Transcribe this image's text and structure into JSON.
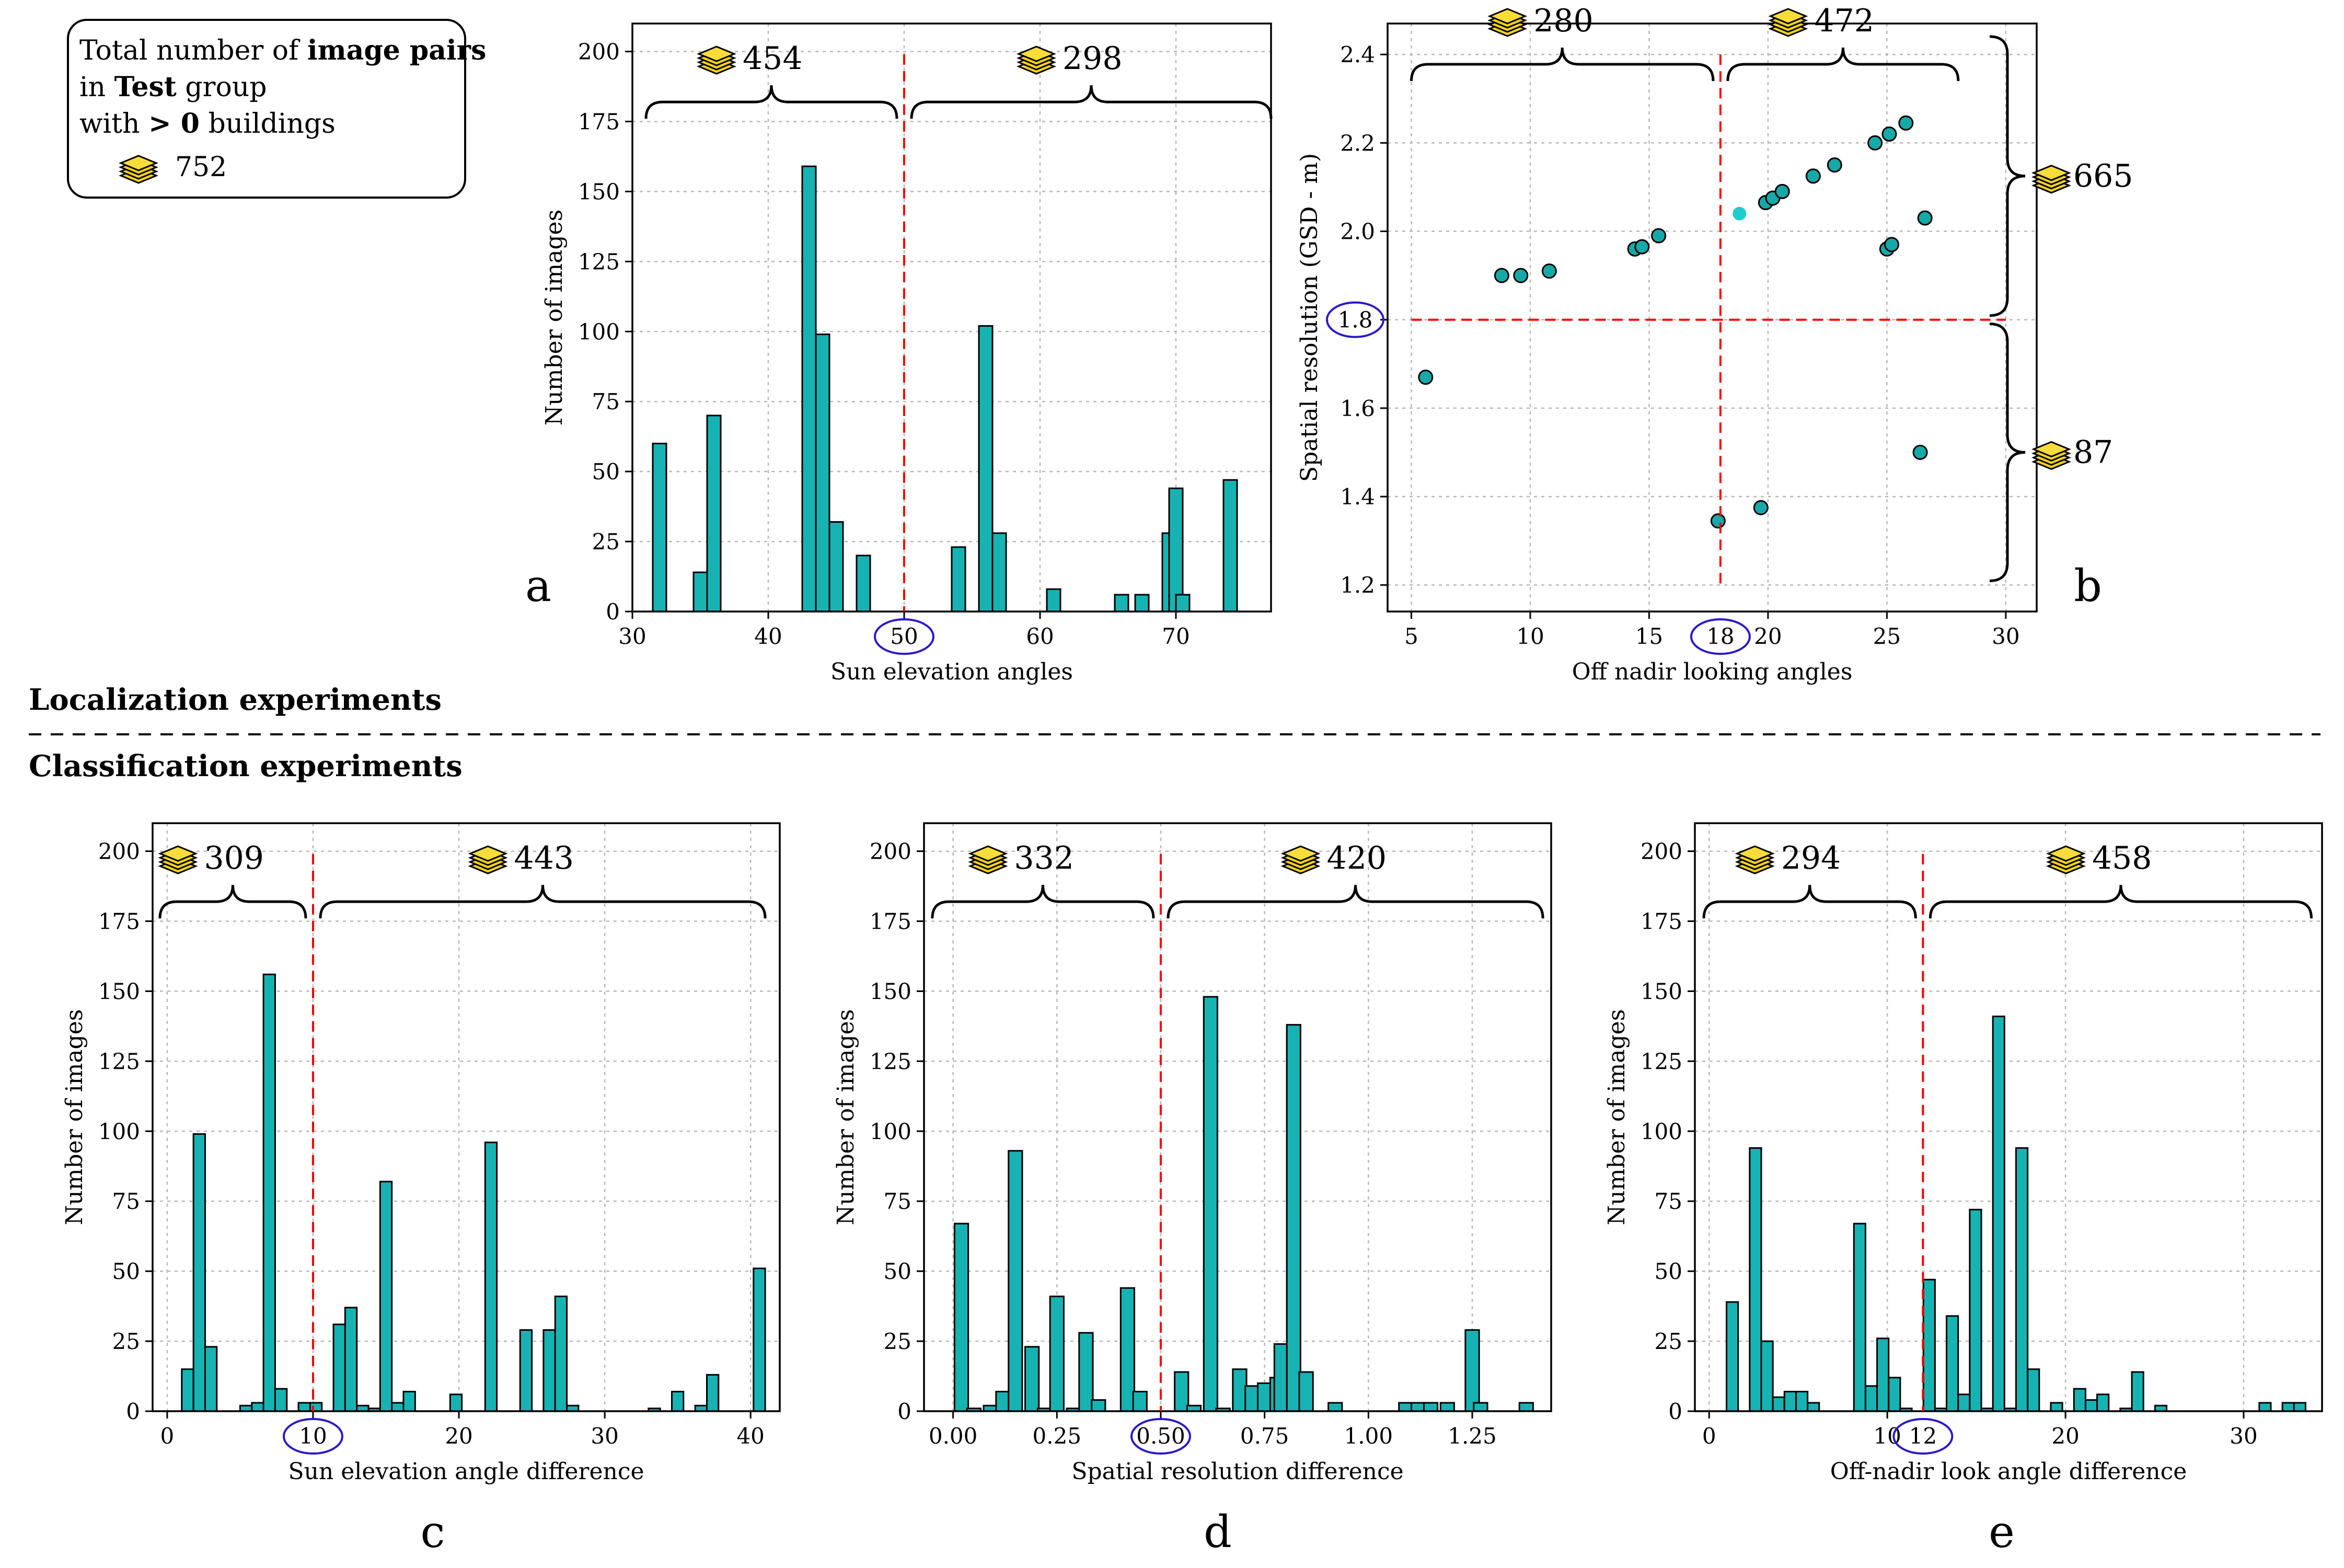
{
  "legend_box": {
    "line1_a": "Total number of ",
    "line1_b": "image pairs",
    "line2_a": "in ",
    "line2_b": "Test",
    "line2_c": " group",
    "line3_a": "with ",
    "line3_b": "> 0",
    "line3_c": " buildings",
    "count": "752"
  },
  "sections": {
    "localization": "Localization experiments",
    "classification": "Classification experiments"
  },
  "colors": {
    "bar": "#17b3b3",
    "dot": "#17a8a8",
    "dot_light": "#22cccc",
    "split": "#ff0000",
    "circle": "#2a18c8",
    "stack": "#f5d21c"
  },
  "chart_data": [
    {
      "id": "a",
      "panel_label": "a",
      "type": "bar",
      "xlabel": "Sun elevation angles",
      "ylabel": "Number of images",
      "xlim": [
        30,
        77
      ],
      "ylim": [
        0,
        210
      ],
      "bin_width": 1,
      "xticks": [
        30,
        40,
        50,
        60,
        70
      ],
      "yticks": [
        0,
        25,
        50,
        75,
        100,
        125,
        150,
        175,
        200
      ],
      "tick_labels_x": [
        "30",
        "40",
        "50",
        "60",
        "70"
      ],
      "tick_labels_y": [
        "0",
        "25",
        "50",
        "75",
        "100",
        "125",
        "150",
        "175",
        "200"
      ],
      "split": 50,
      "split_label": "50",
      "groups": [
        {
          "count": "454",
          "from": 31,
          "to": 50
        },
        {
          "count": "298",
          "from": 50,
          "to": 77
        }
      ],
      "x": [
        32,
        35,
        36,
        43,
        44,
        45,
        47,
        54,
        56,
        57,
        61,
        66,
        67.5,
        69.5,
        70,
        70.5,
        74
      ],
      "values": [
        60,
        14,
        70,
        159,
        99,
        32,
        20,
        23,
        102,
        28,
        8,
        6,
        6,
        28,
        44,
        6,
        47
      ]
    },
    {
      "id": "b",
      "panel_label": "b",
      "type": "scatter",
      "xlabel": "Off nadir looking angles",
      "ylabel": "Spatial resolution (GSD - m)",
      "xlim": [
        4,
        31.3
      ],
      "ylim": [
        1.14,
        2.47
      ],
      "xticks": [
        5,
        10,
        15,
        20,
        25,
        30
      ],
      "yticks": [
        1.2,
        1.4,
        1.6,
        1.8,
        2.0,
        2.2,
        2.4
      ],
      "tick_labels_x": [
        "5",
        "10",
        "15",
        "18",
        "20",
        "25",
        "30"
      ],
      "tick_labels_y": [
        "1.2",
        "1.4",
        "1.6",
        "1.8",
        "2.0",
        "2.2",
        "2.4"
      ],
      "split_x": 18,
      "split_x_label": "18",
      "split_y": 1.8,
      "split_y_label": "1.8",
      "groups_x": [
        {
          "count": "280",
          "from": 5,
          "to": 18
        },
        {
          "count": "472",
          "from": 18,
          "to": 28
        }
      ],
      "groups_y": [
        {
          "count": "665",
          "from": 1.8,
          "to": 2.45
        },
        {
          "count": "87",
          "from": 1.2,
          "to": 1.8
        }
      ],
      "points": [
        {
          "x": 5.6,
          "y": 1.67
        },
        {
          "x": 8.8,
          "y": 1.9
        },
        {
          "x": 9.6,
          "y": 1.9
        },
        {
          "x": 10.8,
          "y": 1.91
        },
        {
          "x": 14.4,
          "y": 1.96
        },
        {
          "x": 14.7,
          "y": 1.965
        },
        {
          "x": 15.4,
          "y": 1.99
        },
        {
          "x": 17.9,
          "y": 1.345
        },
        {
          "x": 18.8,
          "y": 2.04,
          "light": true
        },
        {
          "x": 19.7,
          "y": 1.375
        },
        {
          "x": 19.9,
          "y": 2.065
        },
        {
          "x": 20.2,
          "y": 2.075
        },
        {
          "x": 20.6,
          "y": 2.09
        },
        {
          "x": 21.9,
          "y": 2.125
        },
        {
          "x": 22.8,
          "y": 2.15
        },
        {
          "x": 24.5,
          "y": 2.2
        },
        {
          "x": 25.0,
          "y": 1.96
        },
        {
          "x": 25.1,
          "y": 2.22
        },
        {
          "x": 25.2,
          "y": 1.97
        },
        {
          "x": 25.8,
          "y": 2.245
        },
        {
          "x": 26.4,
          "y": 1.5
        },
        {
          "x": 26.6,
          "y": 2.03
        }
      ]
    },
    {
      "id": "c",
      "panel_label": "c",
      "type": "bar",
      "xlabel": "Sun elevation angle difference",
      "ylabel": "Number of images",
      "xlim": [
        -1,
        42
      ],
      "ylim": [
        0,
        210
      ],
      "bin_width": 0.8,
      "xticks": [
        0,
        10,
        20,
        30,
        40
      ],
      "yticks": [
        0,
        25,
        50,
        75,
        100,
        125,
        150,
        175,
        200
      ],
      "tick_labels_x": [
        "0",
        "10",
        "20",
        "30",
        "40"
      ],
      "tick_labels_y": [
        "0",
        "25",
        "50",
        "75",
        "100",
        "125",
        "150",
        "175",
        "200"
      ],
      "split": 10,
      "split_label": "10",
      "groups": [
        {
          "count": "309",
          "from": -0.5,
          "to": 10
        },
        {
          "count": "443",
          "from": 10,
          "to": 41
        }
      ],
      "x": [
        1.4,
        2.2,
        3.0,
        5.4,
        6.2,
        7.0,
        7.8,
        9.4,
        10.2,
        11.8,
        12.6,
        13.4,
        14.2,
        15.0,
        15.8,
        16.6,
        19.8,
        22.2,
        24.6,
        26.2,
        27.0,
        27.8,
        33.4,
        35.0,
        36.6,
        37.4,
        40.6
      ],
      "values": [
        15,
        99,
        23,
        2,
        3,
        156,
        8,
        3,
        3,
        31,
        37,
        2,
        1,
        82,
        3,
        7,
        6,
        96,
        29,
        29,
        41,
        2,
        1,
        7,
        2,
        13,
        51
      ]
    },
    {
      "id": "d",
      "panel_label": "d",
      "type": "bar",
      "xlabel": "Spatial resolution difference",
      "ylabel": "Number of images",
      "xlim": [
        -0.07,
        1.44
      ],
      "ylim": [
        0,
        210
      ],
      "bin_width": 0.033,
      "xticks": [
        0.0,
        0.25,
        0.5,
        0.75,
        1.0,
        1.25
      ],
      "yticks": [
        0,
        25,
        50,
        75,
        100,
        125,
        150,
        175,
        200
      ],
      "tick_labels_x": [
        "0.00",
        "0.25",
        "0.50",
        "0.75",
        "1.00",
        "1.25"
      ],
      "tick_labels_y": [
        "0",
        "25",
        "50",
        "75",
        "100",
        "125",
        "150",
        "175",
        "200"
      ],
      "split": 0.5,
      "split_label": "0.50",
      "groups": [
        {
          "count": "332",
          "from": -0.05,
          "to": 0.5
        },
        {
          "count": "420",
          "from": 0.5,
          "to": 1.42
        }
      ],
      "x": [
        0.02,
        0.05,
        0.09,
        0.12,
        0.15,
        0.19,
        0.22,
        0.25,
        0.29,
        0.32,
        0.35,
        0.42,
        0.45,
        0.55,
        0.58,
        0.62,
        0.65,
        0.69,
        0.72,
        0.75,
        0.78,
        0.79,
        0.82,
        0.85,
        0.92,
        1.09,
        1.12,
        1.15,
        1.19,
        1.25,
        1.27,
        1.38
      ],
      "values": [
        67,
        1,
        2,
        7,
        93,
        23,
        1,
        41,
        1,
        28,
        4,
        44,
        7,
        14,
        2,
        148,
        1,
        15,
        9,
        10,
        12,
        24,
        138,
        14,
        3,
        3,
        3,
        3,
        3,
        29,
        3,
        3
      ]
    },
    {
      "id": "e",
      "panel_label": "e",
      "type": "bar",
      "xlabel": "Off-nadir look angle difference",
      "ylabel": "Number of images",
      "xlim": [
        -0.8,
        34.4
      ],
      "ylim": [
        0,
        210
      ],
      "bin_width": 0.65,
      "xticks": [
        0,
        10,
        20,
        30
      ],
      "yticks": [
        0,
        25,
        50,
        75,
        100,
        125,
        150,
        175,
        200
      ],
      "tick_labels_x": [
        "0",
        "10",
        "12",
        "20",
        "30"
      ],
      "tick_labels_y": [
        "0",
        "25",
        "50",
        "75",
        "100",
        "125",
        "150",
        "175",
        "200"
      ],
      "split": 12,
      "split_label": "12",
      "groups": [
        {
          "count": "294",
          "from": -0.3,
          "to": 12
        },
        {
          "count": "458",
          "from": 12,
          "to": 33.8
        }
      ],
      "x": [
        1.3,
        2.6,
        3.25,
        3.9,
        4.55,
        5.2,
        5.85,
        8.45,
        9.1,
        9.75,
        10.4,
        11.05,
        12.35,
        13.0,
        13.65,
        14.3,
        14.95,
        15.6,
        16.25,
        16.9,
        17.55,
        18.2,
        19.5,
        20.8,
        21.45,
        22.1,
        23.4,
        24.05,
        25.35,
        31.2,
        32.5,
        33.15
      ],
      "values": [
        39,
        94,
        25,
        5,
        7,
        7,
        3,
        67,
        9,
        26,
        12,
        1,
        47,
        1,
        34,
        6,
        72,
        1,
        141,
        1,
        94,
        15,
        3,
        8,
        4,
        6,
        1,
        14,
        2,
        3,
        3,
        3
      ]
    }
  ]
}
